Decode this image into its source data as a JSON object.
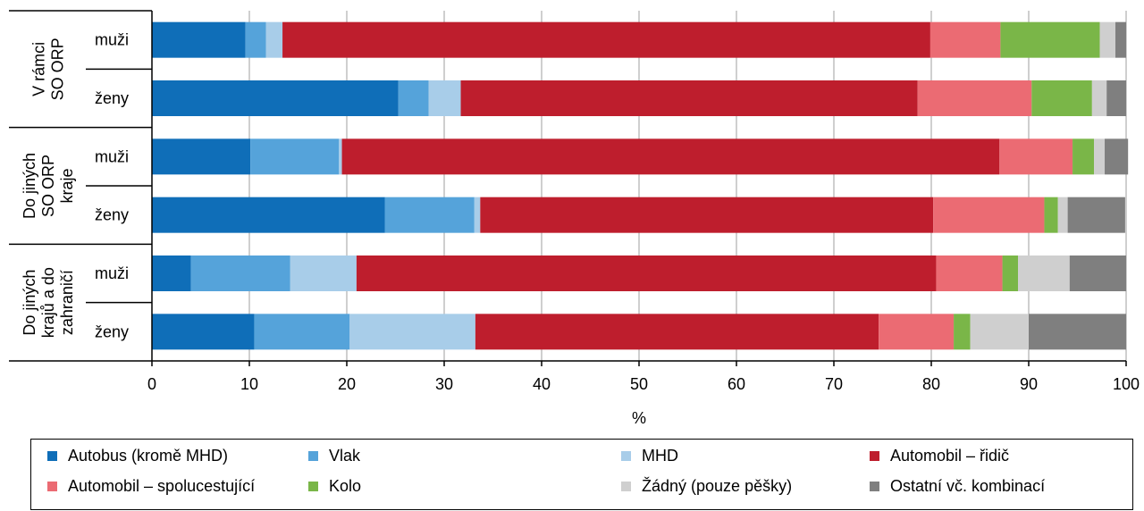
{
  "chart_data": {
    "type": "bar",
    "orientation": "horizontal",
    "stacked": true,
    "xlabel": "%",
    "xlim": [
      0,
      100
    ],
    "xticks": [
      0,
      10,
      20,
      30,
      40,
      50,
      60,
      70,
      80,
      90,
      100
    ],
    "grid": "vertical",
    "legend_position": "bottom",
    "groups": [
      {
        "label": "V rámci SO ORP",
        "label_lines": [
          "V rámci",
          "SO ORP"
        ]
      },
      {
        "label": "Do jiných SO ORP kraje",
        "label_lines": [
          "Do jiných",
          "SO ORP",
          "kraje"
        ]
      },
      {
        "label": "Do jiných krajů a do zahraničí",
        "label_lines": [
          "Do jiných",
          "krajů a do",
          "zahraničí"
        ]
      }
    ],
    "categories": [
      "muži",
      "ženy",
      "muži",
      "ženy",
      "muži",
      "ženy"
    ],
    "series": [
      {
        "name": "Autobus (kromě MHD)",
        "color": "#0f6eb8",
        "values": [
          9.6,
          25.3,
          10.1,
          23.9,
          4.0,
          10.5
        ]
      },
      {
        "name": "Vlak",
        "color": "#55a3da",
        "values": [
          2.1,
          3.1,
          9.1,
          9.2,
          10.2,
          9.8
        ]
      },
      {
        "name": "MHD",
        "color": "#a8cde9",
        "values": [
          1.7,
          3.3,
          0.3,
          0.6,
          6.8,
          12.9
        ]
      },
      {
        "name": "Automobil – řidič",
        "color": "#be1e2d",
        "values": [
          66.5,
          46.9,
          67.5,
          46.5,
          59.5,
          41.4
        ]
      },
      {
        "name": "Automobil – spolucestující",
        "color": "#eb6b73",
        "values": [
          7.2,
          11.7,
          7.5,
          11.4,
          6.8,
          7.7
        ]
      },
      {
        "name": "Kolo",
        "color": "#7ab648",
        "values": [
          10.2,
          6.2,
          2.2,
          1.4,
          1.6,
          1.7
        ]
      },
      {
        "name": "Žádný (pouze pěšky)",
        "color": "#cfcfcf",
        "values": [
          1.6,
          1.5,
          1.1,
          1.0,
          5.3,
          6.0
        ]
      },
      {
        "name": "Ostatní vč. kombinací",
        "color": "#7f7f7f",
        "values": [
          1.1,
          2.0,
          2.4,
          5.9,
          5.8,
          10.0
        ]
      }
    ]
  }
}
